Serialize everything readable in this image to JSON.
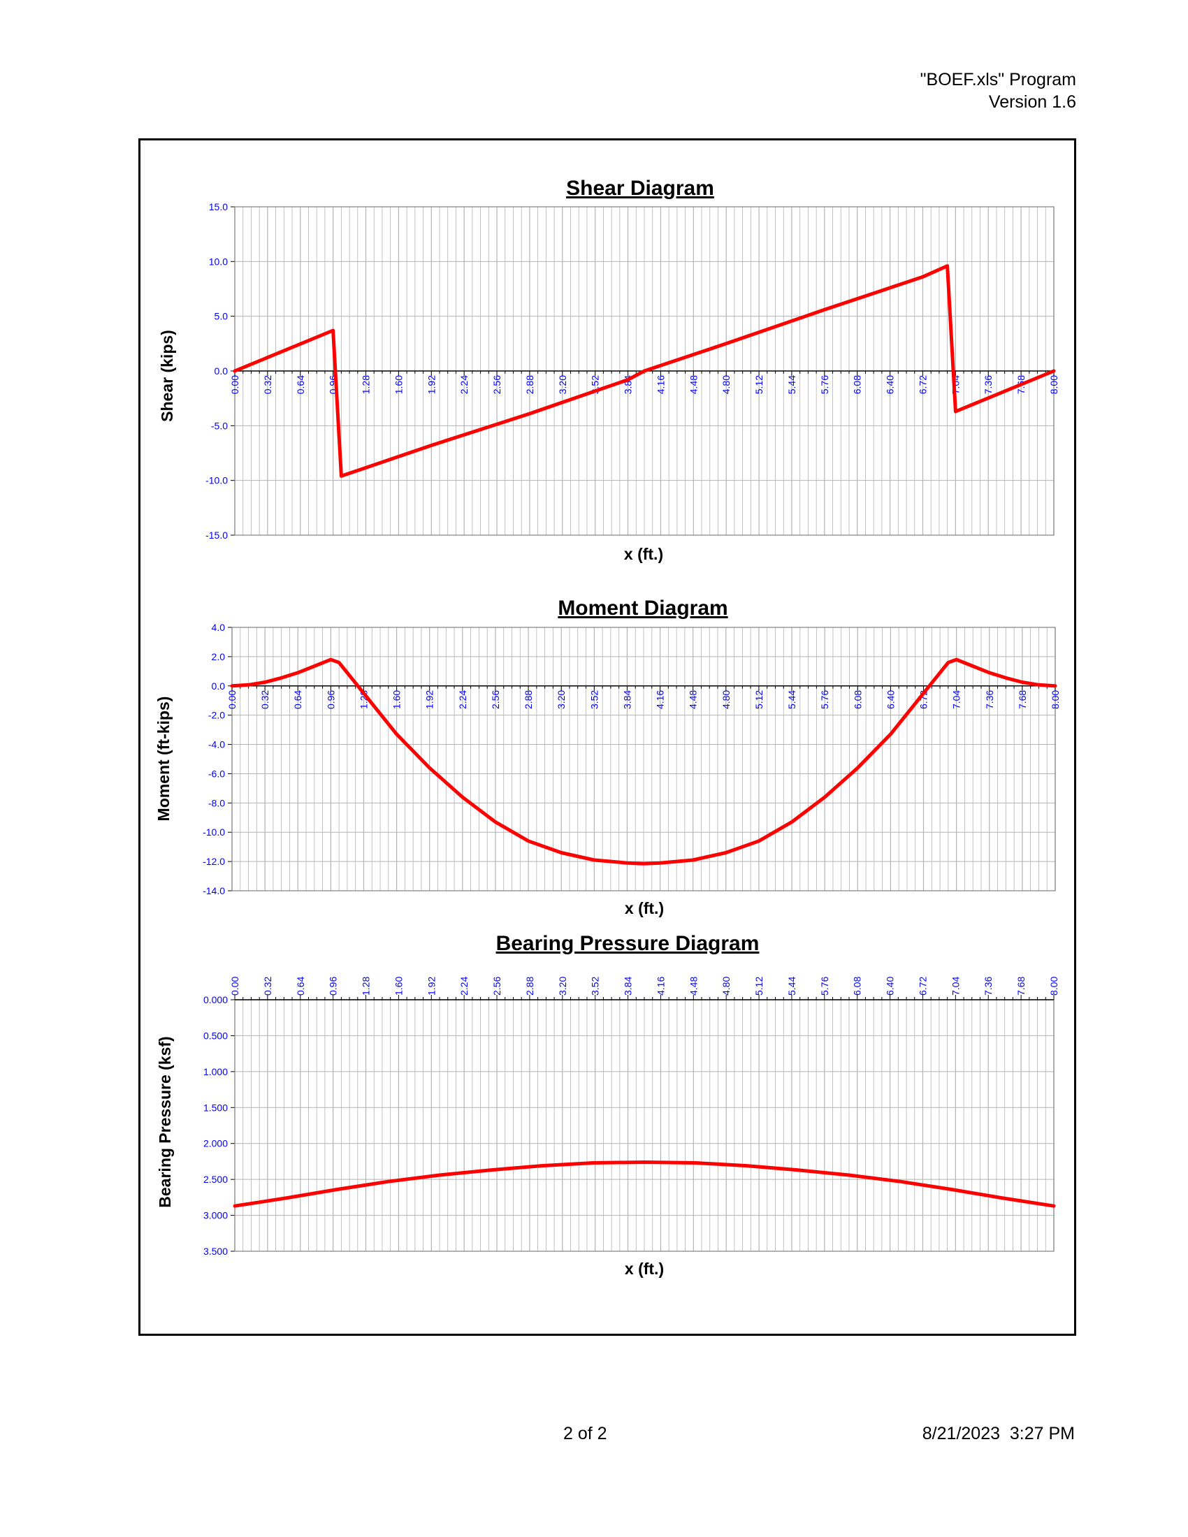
{
  "header": {
    "program": "\"BOEF.xls\" Program",
    "version": "Version 1.6"
  },
  "footer": {
    "page": "2 of 2",
    "datetime": "8/21/2023  3:27 PM"
  },
  "colors": {
    "series": "#ff0000",
    "tick_labels": "#0000ff",
    "grid": "#b3b3b3"
  },
  "x_ticks": [
    "0.00",
    "0.32",
    "0.64",
    "0.96",
    "1.28",
    "1.60",
    "1.92",
    "2.24",
    "2.56",
    "2.88",
    "3.20",
    "3.52",
    "3.84",
    "4.16",
    "4.48",
    "4.80",
    "5.12",
    "5.44",
    "5.76",
    "6.08",
    "6.40",
    "6.72",
    "7.04",
    "7.36",
    "7.68",
    "8.00"
  ],
  "chart_data": [
    {
      "type": "line",
      "title": "Shear Diagram",
      "xlabel": "x (ft.)",
      "ylabel": "Shear (kips)",
      "xlim": [
        0,
        8
      ],
      "ylim": [
        -15,
        15
      ],
      "yticks": [
        "15.0",
        "10.0",
        "5.0",
        "0.0",
        "-5.0",
        "-10.0",
        "-15.0"
      ],
      "grid": true,
      "series": [
        {
          "x": [
            0,
            0.96,
            1.04,
            1.92,
            2.88,
            3.84,
            4.0,
            4.8,
            5.76,
            6.72,
            6.96,
            7.04,
            8.0
          ],
          "y": [
            0,
            3.7,
            -9.6,
            -6.8,
            -3.9,
            -0.8,
            0,
            2.5,
            5.6,
            8.6,
            9.6,
            -3.7,
            0
          ]
        }
      ]
    },
    {
      "type": "line",
      "title": "Moment Diagram",
      "xlabel": "x (ft.)",
      "ylabel": "Moment (ft-kips)",
      "xlim": [
        0,
        8
      ],
      "ylim": [
        -14,
        4
      ],
      "yticks": [
        "4.0",
        "2.0",
        "0.0",
        "-2.0",
        "-4.0",
        "-6.0",
        "-8.0",
        "-10.0",
        "-12.0",
        "-14.0"
      ],
      "grid": true,
      "series": [
        {
          "x": [
            0,
            0.16,
            0.32,
            0.48,
            0.64,
            0.8,
            0.96,
            1.04,
            1.2,
            1.44,
            1.6,
            1.92,
            2.24,
            2.56,
            2.88,
            3.2,
            3.52,
            3.84,
            4.0,
            4.16,
            4.48,
            4.8,
            5.12,
            5.44,
            5.76,
            6.08,
            6.4,
            6.56,
            6.8,
            6.96,
            7.04,
            7.2,
            7.36,
            7.52,
            7.68,
            7.84,
            8.0
          ],
          "y": [
            0,
            0.07,
            0.25,
            0.55,
            0.9,
            1.35,
            1.8,
            1.6,
            0.2,
            -1.9,
            -3.3,
            -5.6,
            -7.6,
            -9.3,
            -10.6,
            -11.4,
            -11.9,
            -12.1,
            -12.15,
            -12.1,
            -11.9,
            -11.4,
            -10.6,
            -9.3,
            -7.6,
            -5.6,
            -3.3,
            -1.9,
            0.2,
            1.6,
            1.8,
            1.35,
            0.9,
            0.55,
            0.25,
            0.07,
            0
          ]
        }
      ]
    },
    {
      "type": "line",
      "title": "Bearing Pressure Diagram",
      "xlabel": "x (ft.)",
      "ylabel": "Bearing Pressure (ksf)",
      "xlim": [
        0,
        8
      ],
      "ylim": [
        0,
        3.5
      ],
      "y_inverted": true,
      "x_axis_position": "top",
      "yticks": [
        "0.000",
        "0.500",
        "1.000",
        "1.500",
        "2.000",
        "2.500",
        "3.000",
        "3.500"
      ],
      "grid": true,
      "series": [
        {
          "x": [
            0,
            0.5,
            1.0,
            1.5,
            2.0,
            2.5,
            3.0,
            3.5,
            4.0,
            4.5,
            5.0,
            5.5,
            6.0,
            6.5,
            7.0,
            7.5,
            8.0
          ],
          "y": [
            2.87,
            2.76,
            2.64,
            2.53,
            2.44,
            2.37,
            2.31,
            2.27,
            2.26,
            2.27,
            2.31,
            2.37,
            2.44,
            2.53,
            2.64,
            2.76,
            2.87
          ]
        }
      ]
    }
  ]
}
